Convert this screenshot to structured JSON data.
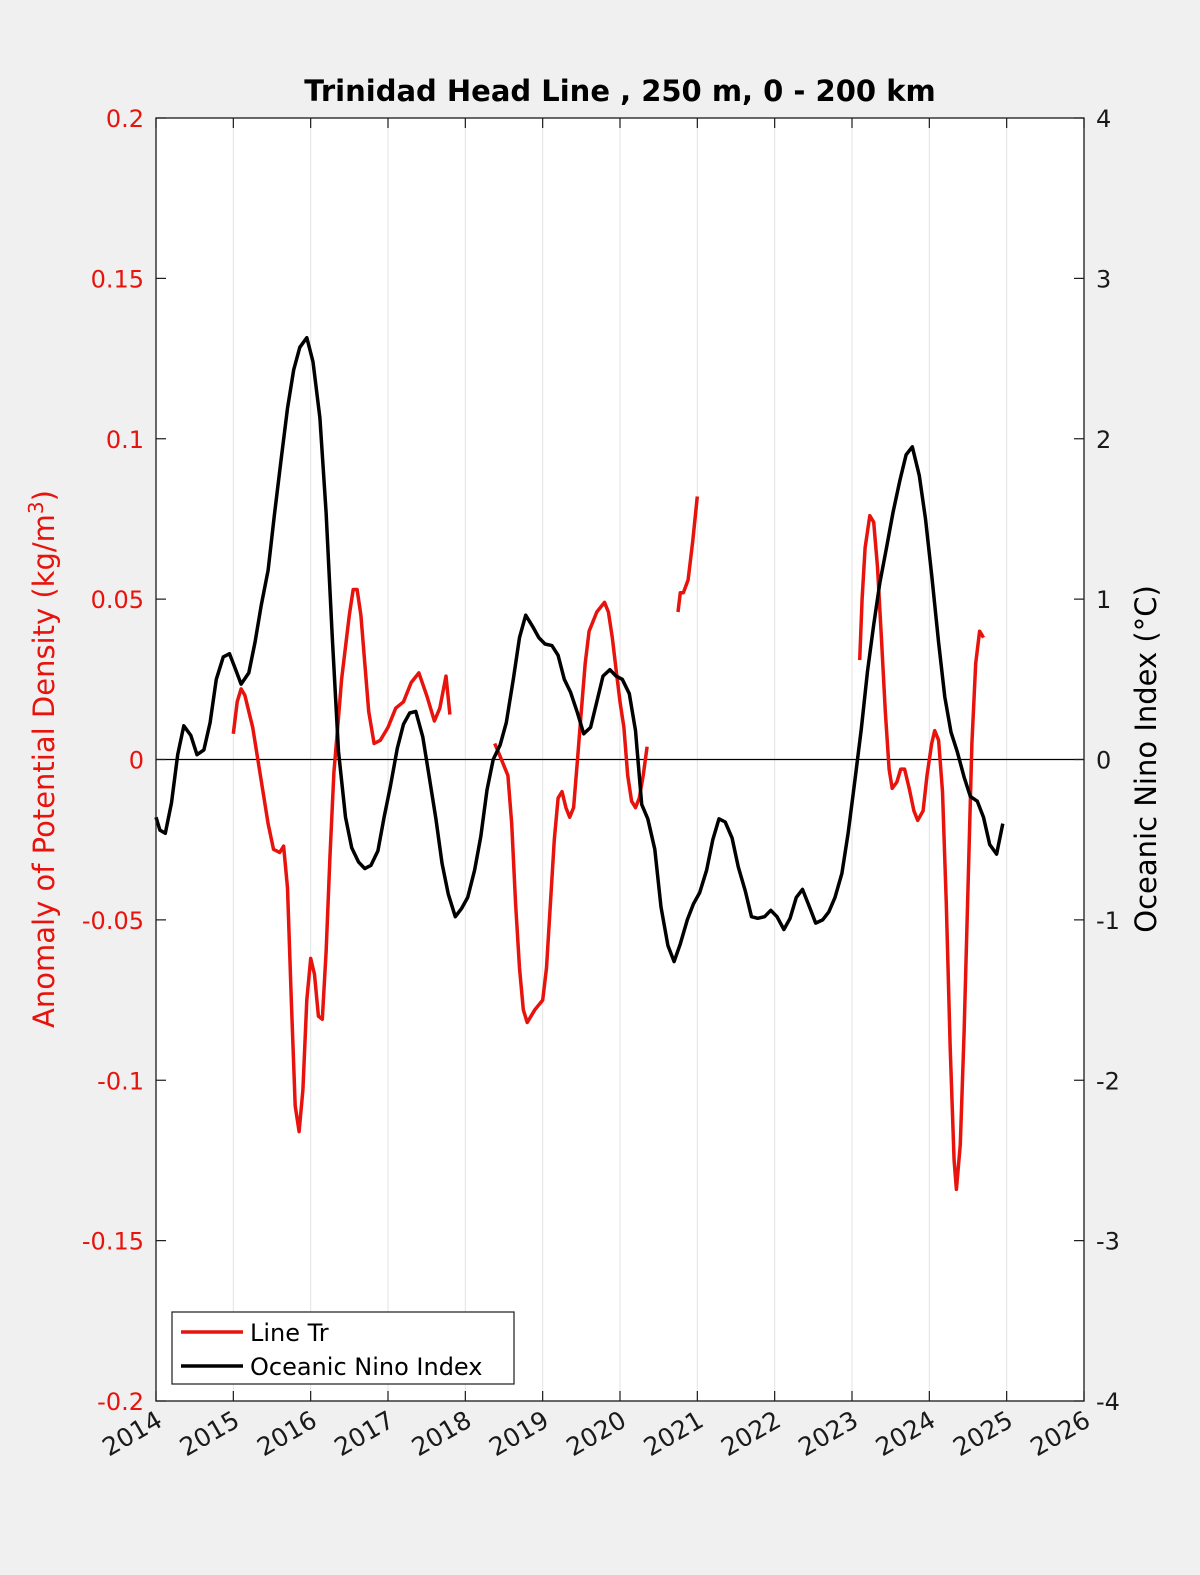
{
  "chart_data": {
    "type": "line",
    "title": "Trinidad Head Line , 250 m, 0 - 200 km",
    "ylabel_left": "Anomaly of Potential Density (kg/m",
    "ylabel_left_sup": "3",
    "ylabel_left_close": ")",
    "ylabel_right": "Oceanic Nino Index (°C)",
    "xlim": [
      2014,
      2026
    ],
    "ylim_left": [
      -0.2,
      0.2
    ],
    "ylim_right": [
      -4,
      4
    ],
    "x_ticks": [
      "2014",
      "2015",
      "2016",
      "2017",
      "2018",
      "2019",
      "2020",
      "2021",
      "2022",
      "2023",
      "2024",
      "2025",
      "2026"
    ],
    "y_ticks_left": [
      "0.2",
      "0.15",
      "0.1",
      "0.05",
      "0",
      "-0.05",
      "-0.1",
      "-0.15",
      "-0.2"
    ],
    "y_ticks_right": [
      "4",
      "3",
      "2",
      "1",
      "0",
      "-1",
      "-2",
      "-3",
      "-4"
    ],
    "grid": "vertical",
    "legend_position": "bottom-left",
    "colors": {
      "line_tr": "#e8130c",
      "oni": "#000000",
      "left_axis": "#e8130c"
    },
    "series": [
      {
        "name": "Line Tr",
        "axis": "left",
        "segments": [
          [
            [
              2015.0,
              0.008
            ],
            [
              2015.05,
              0.018
            ],
            [
              2015.1,
              0.022
            ],
            [
              2015.15,
              0.02
            ],
            [
              2015.25,
              0.01
            ],
            [
              2015.35,
              -0.005
            ],
            [
              2015.45,
              -0.02
            ],
            [
              2015.52,
              -0.028
            ],
            [
              2015.6,
              -0.029
            ],
            [
              2015.65,
              -0.027
            ],
            [
              2015.7,
              -0.04
            ],
            [
              2015.75,
              -0.075
            ],
            [
              2015.8,
              -0.108
            ],
            [
              2015.85,
              -0.116
            ],
            [
              2015.9,
              -0.103
            ],
            [
              2015.95,
              -0.075
            ],
            [
              2016.0,
              -0.062
            ],
            [
              2016.05,
              -0.067
            ],
            [
              2016.1,
              -0.08
            ],
            [
              2016.15,
              -0.081
            ],
            [
              2016.2,
              -0.06
            ],
            [
              2016.25,
              -0.03
            ],
            [
              2016.3,
              -0.004
            ],
            [
              2016.35,
              0.01
            ],
            [
              2016.4,
              0.025
            ],
            [
              2016.5,
              0.045
            ],
            [
              2016.55,
              0.053
            ],
            [
              2016.6,
              0.053
            ],
            [
              2016.65,
              0.045
            ],
            [
              2016.7,
              0.03
            ],
            [
              2016.75,
              0.015
            ],
            [
              2016.82,
              0.005
            ],
            [
              2016.9,
              0.006
            ],
            [
              2017.0,
              0.01
            ],
            [
              2017.1,
              0.016
            ],
            [
              2017.2,
              0.018
            ],
            [
              2017.3,
              0.024
            ],
            [
              2017.4,
              0.027
            ],
            [
              2017.5,
              0.02
            ],
            [
              2017.6,
              0.012
            ],
            [
              2017.67,
              0.016
            ],
            [
              2017.75,
              0.026
            ],
            [
              2017.8,
              0.014
            ]
          ],
          [
            [
              2018.38,
              0.005
            ],
            [
              2018.45,
              0.001
            ],
            [
              2018.55,
              -0.005
            ],
            [
              2018.6,
              -0.02
            ],
            [
              2018.65,
              -0.045
            ],
            [
              2018.7,
              -0.065
            ],
            [
              2018.75,
              -0.078
            ],
            [
              2018.8,
              -0.082
            ],
            [
              2018.9,
              -0.078
            ],
            [
              2019.0,
              -0.075
            ],
            [
              2019.05,
              -0.065
            ],
            [
              2019.1,
              -0.045
            ],
            [
              2019.15,
              -0.025
            ],
            [
              2019.2,
              -0.012
            ],
            [
              2019.25,
              -0.01
            ],
            [
              2019.3,
              -0.015
            ],
            [
              2019.35,
              -0.018
            ],
            [
              2019.4,
              -0.015
            ],
            [
              2019.45,
              0.0
            ],
            [
              2019.5,
              0.015
            ],
            [
              2019.55,
              0.03
            ],
            [
              2019.6,
              0.04
            ],
            [
              2019.7,
              0.046
            ],
            [
              2019.8,
              0.049
            ],
            [
              2019.85,
              0.046
            ],
            [
              2019.9,
              0.038
            ],
            [
              2019.95,
              0.028
            ],
            [
              2020.0,
              0.018
            ],
            [
              2020.05,
              0.01
            ],
            [
              2020.1,
              -0.005
            ],
            [
              2020.15,
              -0.013
            ],
            [
              2020.2,
              -0.015
            ],
            [
              2020.25,
              -0.012
            ],
            [
              2020.3,
              -0.005
            ],
            [
              2020.35,
              0.004
            ]
          ],
          [
            [
              2020.75,
              0.046
            ],
            [
              2020.78,
              0.052
            ],
            [
              2020.82,
              0.052
            ],
            [
              2020.88,
              0.056
            ],
            [
              2020.94,
              0.068
            ],
            [
              2021.0,
              0.082
            ]
          ],
          [
            [
              2023.1,
              0.031
            ],
            [
              2023.13,
              0.05
            ],
            [
              2023.17,
              0.066
            ],
            [
              2023.23,
              0.076
            ],
            [
              2023.28,
              0.074
            ],
            [
              2023.33,
              0.06
            ],
            [
              2023.38,
              0.038
            ],
            [
              2023.43,
              0.015
            ],
            [
              2023.48,
              -0.003
            ],
            [
              2023.52,
              -0.009
            ],
            [
              2023.58,
              -0.007
            ],
            [
              2023.63,
              -0.003
            ],
            [
              2023.68,
              -0.003
            ],
            [
              2023.74,
              -0.009
            ],
            [
              2023.8,
              -0.016
            ],
            [
              2023.85,
              -0.019
            ],
            [
              2023.92,
              -0.016
            ],
            [
              2023.97,
              -0.005
            ],
            [
              2024.03,
              0.005
            ],
            [
              2024.07,
              0.009
            ],
            [
              2024.12,
              0.006
            ],
            [
              2024.17,
              -0.01
            ],
            [
              2024.22,
              -0.045
            ],
            [
              2024.27,
              -0.09
            ],
            [
              2024.32,
              -0.125
            ],
            [
              2024.35,
              -0.134
            ],
            [
              2024.4,
              -0.12
            ],
            [
              2024.45,
              -0.085
            ],
            [
              2024.5,
              -0.04
            ],
            [
              2024.55,
              0.005
            ],
            [
              2024.6,
              0.03
            ],
            [
              2024.65,
              0.04
            ],
            [
              2024.7,
              0.038
            ]
          ]
        ]
      },
      {
        "name": "Oceanic Nino Index",
        "axis": "right",
        "segments": [
          [
            [
              2014.0,
              -0.36
            ],
            [
              2014.05,
              -0.44
            ],
            [
              2014.12,
              -0.46
            ],
            [
              2014.2,
              -0.27
            ],
            [
              2014.28,
              0.03
            ],
            [
              2014.36,
              0.21
            ],
            [
              2014.45,
              0.15
            ],
            [
              2014.53,
              0.03
            ],
            [
              2014.62,
              0.06
            ],
            [
              2014.7,
              0.23
            ],
            [
              2014.78,
              0.5
            ],
            [
              2014.87,
              0.64
            ],
            [
              2014.95,
              0.66
            ],
            [
              2015.03,
              0.56
            ],
            [
              2015.1,
              0.47
            ],
            [
              2015.2,
              0.54
            ],
            [
              2015.28,
              0.73
            ],
            [
              2015.36,
              0.96
            ],
            [
              2015.45,
              1.18
            ],
            [
              2015.53,
              1.52
            ],
            [
              2015.62,
              1.88
            ],
            [
              2015.7,
              2.19
            ],
            [
              2015.78,
              2.43
            ],
            [
              2015.86,
              2.57
            ],
            [
              2015.95,
              2.63
            ],
            [
              2016.03,
              2.48
            ],
            [
              2016.12,
              2.13
            ],
            [
              2016.2,
              1.54
            ],
            [
              2016.28,
              0.76
            ],
            [
              2016.36,
              0.05
            ],
            [
              2016.45,
              -0.36
            ],
            [
              2016.53,
              -0.55
            ],
            [
              2016.62,
              -0.64
            ],
            [
              2016.7,
              -0.68
            ],
            [
              2016.78,
              -0.66
            ],
            [
              2016.87,
              -0.57
            ],
            [
              2016.95,
              -0.36
            ],
            [
              2017.03,
              -0.17
            ],
            [
              2017.12,
              0.07
            ],
            [
              2017.2,
              0.22
            ],
            [
              2017.28,
              0.29
            ],
            [
              2017.36,
              0.3
            ],
            [
              2017.45,
              0.14
            ],
            [
              2017.53,
              -0.1
            ],
            [
              2017.62,
              -0.37
            ],
            [
              2017.7,
              -0.65
            ],
            [
              2017.78,
              -0.84
            ],
            [
              2017.87,
              -0.98
            ],
            [
              2017.95,
              -0.93
            ],
            [
              2018.03,
              -0.86
            ],
            [
              2018.12,
              -0.69
            ],
            [
              2018.2,
              -0.48
            ],
            [
              2018.28,
              -0.19
            ],
            [
              2018.36,
              0.0
            ],
            [
              2018.45,
              0.09
            ],
            [
              2018.53,
              0.23
            ],
            [
              2018.62,
              0.5
            ],
            [
              2018.7,
              0.76
            ],
            [
              2018.78,
              0.9
            ],
            [
              2018.87,
              0.83
            ],
            [
              2018.95,
              0.76
            ],
            [
              2019.03,
              0.72
            ],
            [
              2019.12,
              0.71
            ],
            [
              2019.2,
              0.65
            ],
            [
              2019.28,
              0.5
            ],
            [
              2019.36,
              0.42
            ],
            [
              2019.45,
              0.29
            ],
            [
              2019.53,
              0.16
            ],
            [
              2019.62,
              0.2
            ],
            [
              2019.7,
              0.36
            ],
            [
              2019.78,
              0.52
            ],
            [
              2019.87,
              0.56
            ],
            [
              2019.95,
              0.52
            ],
            [
              2020.03,
              0.5
            ],
            [
              2020.12,
              0.41
            ],
            [
              2020.2,
              0.18
            ],
            [
              2020.28,
              -0.28
            ],
            [
              2020.36,
              -0.37
            ],
            [
              2020.45,
              -0.56
            ],
            [
              2020.53,
              -0.92
            ],
            [
              2020.62,
              -1.16
            ],
            [
              2020.7,
              -1.26
            ],
            [
              2020.78,
              -1.15
            ],
            [
              2020.87,
              -1.0
            ],
            [
              2020.95,
              -0.9
            ],
            [
              2021.03,
              -0.83
            ],
            [
              2021.12,
              -0.69
            ],
            [
              2021.2,
              -0.5
            ],
            [
              2021.28,
              -0.37
            ],
            [
              2021.36,
              -0.39
            ],
            [
              2021.45,
              -0.49
            ],
            [
              2021.53,
              -0.67
            ],
            [
              2021.62,
              -0.82
            ],
            [
              2021.7,
              -0.98
            ],
            [
              2021.78,
              -0.99
            ],
            [
              2021.87,
              -0.98
            ],
            [
              2021.95,
              -0.94
            ],
            [
              2022.03,
              -0.98
            ],
            [
              2022.12,
              -1.06
            ],
            [
              2022.2,
              -0.99
            ],
            [
              2022.28,
              -0.86
            ],
            [
              2022.36,
              -0.81
            ],
            [
              2022.45,
              -0.92
            ],
            [
              2022.53,
              -1.02
            ],
            [
              2022.62,
              -1.0
            ],
            [
              2022.7,
              -0.95
            ],
            [
              2022.78,
              -0.86
            ],
            [
              2022.87,
              -0.71
            ],
            [
              2022.95,
              -0.46
            ],
            [
              2023.03,
              -0.16
            ],
            [
              2023.12,
              0.19
            ],
            [
              2023.2,
              0.55
            ],
            [
              2023.28,
              0.84
            ],
            [
              2023.36,
              1.1
            ],
            [
              2023.45,
              1.33
            ],
            [
              2023.53,
              1.54
            ],
            [
              2023.62,
              1.74
            ],
            [
              2023.7,
              1.9
            ],
            [
              2023.78,
              1.95
            ],
            [
              2023.87,
              1.77
            ],
            [
              2023.95,
              1.5
            ],
            [
              2024.03,
              1.15
            ],
            [
              2024.12,
              0.73
            ],
            [
              2024.2,
              0.39
            ],
            [
              2024.28,
              0.17
            ],
            [
              2024.36,
              0.05
            ],
            [
              2024.45,
              -0.11
            ],
            [
              2024.53,
              -0.23
            ],
            [
              2024.62,
              -0.26
            ],
            [
              2024.7,
              -0.36
            ],
            [
              2024.78,
              -0.53
            ],
            [
              2024.87,
              -0.59
            ],
            [
              2024.95,
              -0.4
            ]
          ]
        ]
      }
    ]
  }
}
